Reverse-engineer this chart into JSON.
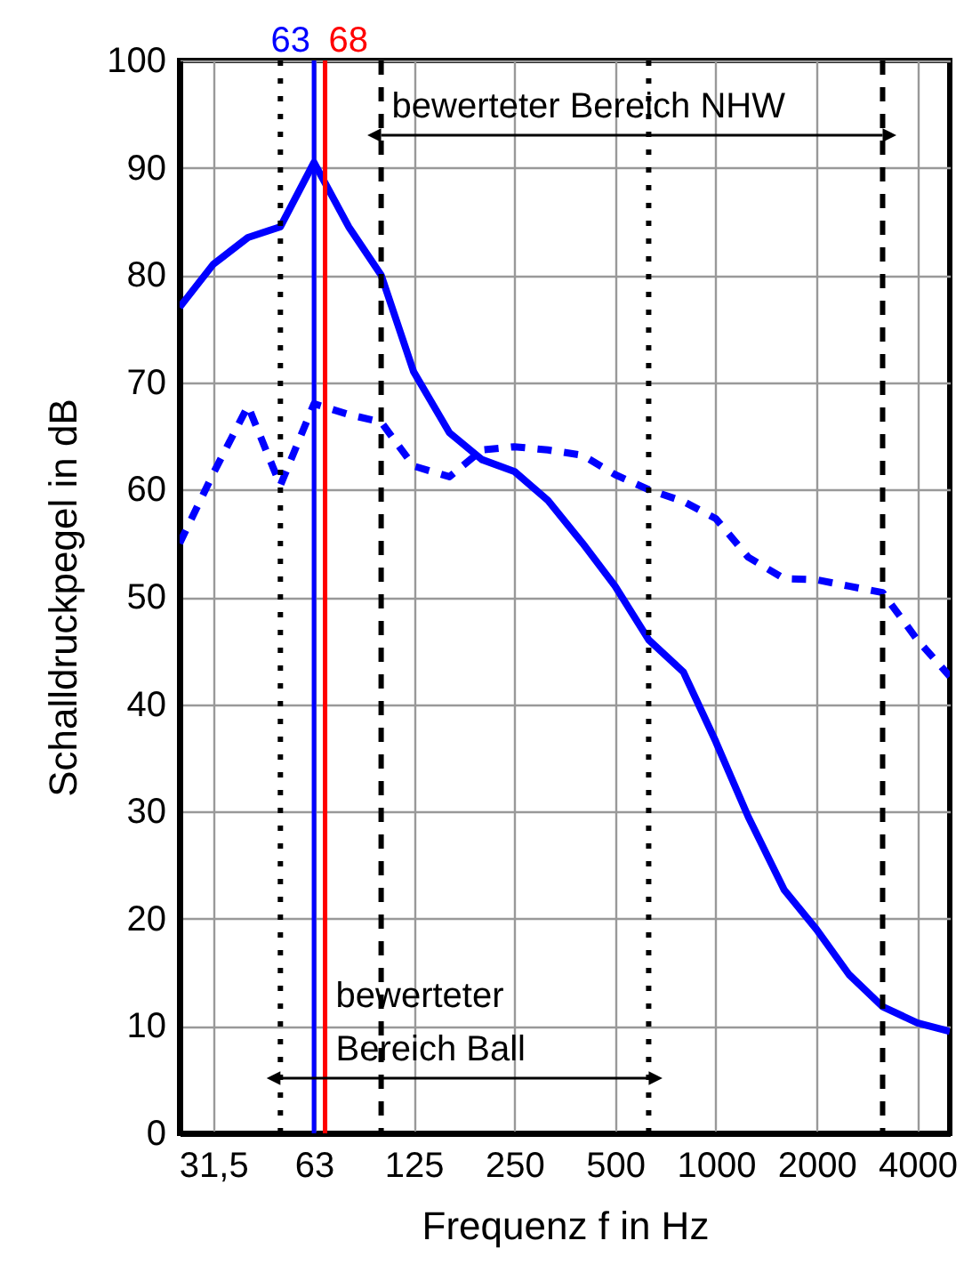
{
  "chart_data": {
    "type": "line",
    "xlabel": "Frequenz f in Hz",
    "ylabel": "Schalldruckpegel in dB",
    "x": [
      25,
      31.5,
      40,
      50,
      63,
      80,
      100,
      125,
      160,
      200,
      250,
      315,
      400,
      500,
      630,
      800,
      1000,
      1250,
      1600,
      2000,
      2500,
      3150,
      4000,
      5000
    ],
    "series": [
      {
        "color": "#0000ff",
        "line_style": "solid",
        "values": [
          77,
          81,
          83.5,
          84.5,
          90.5,
          84.5,
          80,
          71,
          65.3,
          62.8,
          61.7,
          59,
          55,
          51,
          46,
          43,
          36.5,
          29.5,
          22.7,
          19,
          14.8,
          11.8,
          10.3,
          9.5
        ]
      },
      {
        "color": "#0000ff",
        "line_style": "dashed",
        "values": [
          55,
          61.5,
          67.8,
          60.4,
          68,
          67,
          66.3,
          62.2,
          61.2,
          63.7,
          64,
          63.7,
          63.2,
          61.4,
          60,
          58.9,
          57.3,
          53.7,
          51.7,
          51.6,
          51,
          50.4,
          46,
          42.6
        ]
      }
    ],
    "xlim": [
      25,
      5000
    ],
    "xticks": [
      {
        "value": 31.5,
        "label": "31,5"
      },
      63,
      125,
      250,
      500,
      1000,
      2000,
      4000
    ],
    "ylim": [
      0,
      100
    ],
    "yticks": [
      0,
      10,
      20,
      30,
      40,
      50,
      60,
      70,
      80,
      90,
      100
    ],
    "log": "x",
    "grid": true,
    "marker": "none",
    "ref_lines": [
      {
        "axis": "x",
        "value": 50,
        "color": "#000000",
        "line_style": "dotted"
      },
      {
        "axis": "x",
        "value": 100,
        "color": "#000000",
        "line_style": "dashed"
      },
      {
        "axis": "x",
        "value": 630,
        "color": "#000000",
        "line_style": "dotted"
      },
      {
        "axis": "x",
        "value": 3150,
        "color": "#000000",
        "line_style": "dashed"
      },
      {
        "axis": "x",
        "value": 63,
        "label": "63",
        "color": "#0000ff",
        "line_style": "solid"
      },
      {
        "axis": "x",
        "value": 68,
        "label": "68",
        "color": "#ff0000",
        "line_style": "solid"
      }
    ],
    "annotations": [
      "bewerteter\nBereich Ball",
      "bewerteter Bereich NHW"
    ]
  }
}
